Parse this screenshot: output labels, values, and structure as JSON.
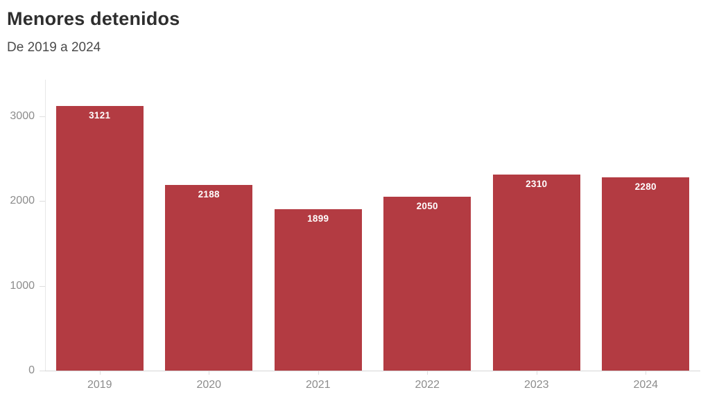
{
  "header": {
    "title": "Menores detenidos",
    "subtitle": "De 2019 a 2024"
  },
  "chart_data": {
    "type": "bar",
    "title": "Menores detenidos",
    "subtitle": "De 2019 a 2024",
    "categories": [
      "2019",
      "2020",
      "2021",
      "2022",
      "2023",
      "2024"
    ],
    "values": [
      3121,
      2188,
      1899,
      2050,
      2310,
      2280
    ],
    "bar_labels": [
      "3121",
      "2188",
      "1899",
      "2050",
      "2310",
      "2280"
    ],
    "xlabel": "",
    "ylabel": "",
    "ylim": [
      0,
      3430
    ],
    "yticks": [
      0,
      1000,
      2000,
      3000
    ],
    "grid": false,
    "legend": false,
    "colors": {
      "bar": "#b33b42",
      "value_label": "#ffffff",
      "axis_line": "#e7e7e7",
      "baseline": "#d6d6d6",
      "tick_mark": "#dedede",
      "tick_label": "#8c8c8c",
      "title": "#2e2e2e",
      "subtitle": "#4b4b4b"
    }
  }
}
